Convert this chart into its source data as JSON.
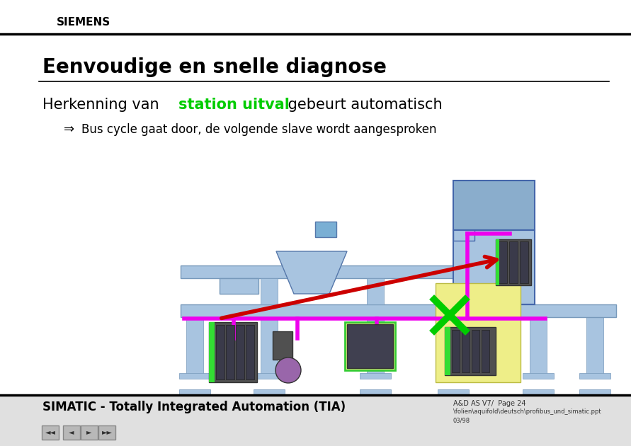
{
  "title": "Eenvoudige en snelle diagnose",
  "subtitle_normal1": "Herkenning van ",
  "subtitle_green": "station uitval",
  "subtitle_normal2": " gebeurt automatisch",
  "bullet_arrow": "⇒",
  "bullet_text": "Bus cycle gaat door, de volgende slave wordt aangesproken",
  "header_brand": "SIEMENS",
  "footer_text": "SIMATIC - Totally Integrated Automation (TIA)",
  "footer_right1": "A&D AS V7/  Page 24",
  "footer_right2": "\\folien\\aquifold\\deutsch\\profibus_und_simatic.ppt",
  "footer_right3": "03/98",
  "bg_color": "#ffffff",
  "title_color": "#000000",
  "green_color": "#00cc00",
  "blue_light": "#a8c4e0",
  "blue_medium": "#7aafd4",
  "blue_dark": "#4477aa",
  "magenta": "#ee00ee",
  "green_cross": "#00cc00",
  "red_arrow": "#cc0000",
  "yellow_bg": "#eeee88",
  "gray_device": "#666666",
  "gray_rail": "#a0a8b0"
}
